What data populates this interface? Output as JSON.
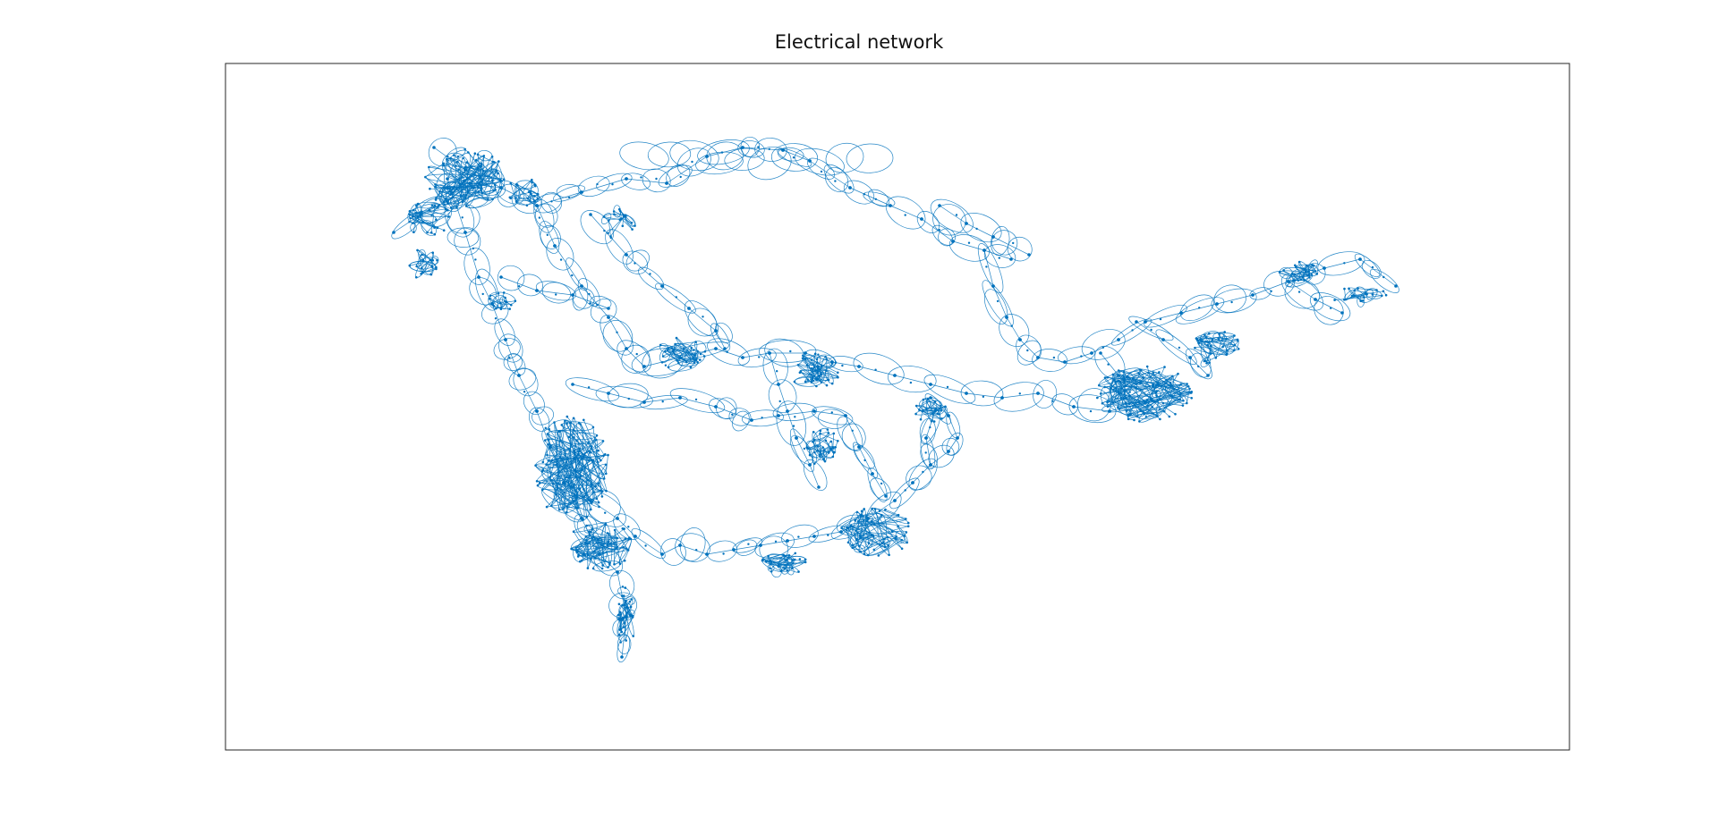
{
  "figure": {
    "title": "Electrical network"
  },
  "graph": {
    "edge_color": "#0072BD",
    "node_color": "#0072BD",
    "axes_box_color": "#262626",
    "background": "#ffffff"
  }
}
